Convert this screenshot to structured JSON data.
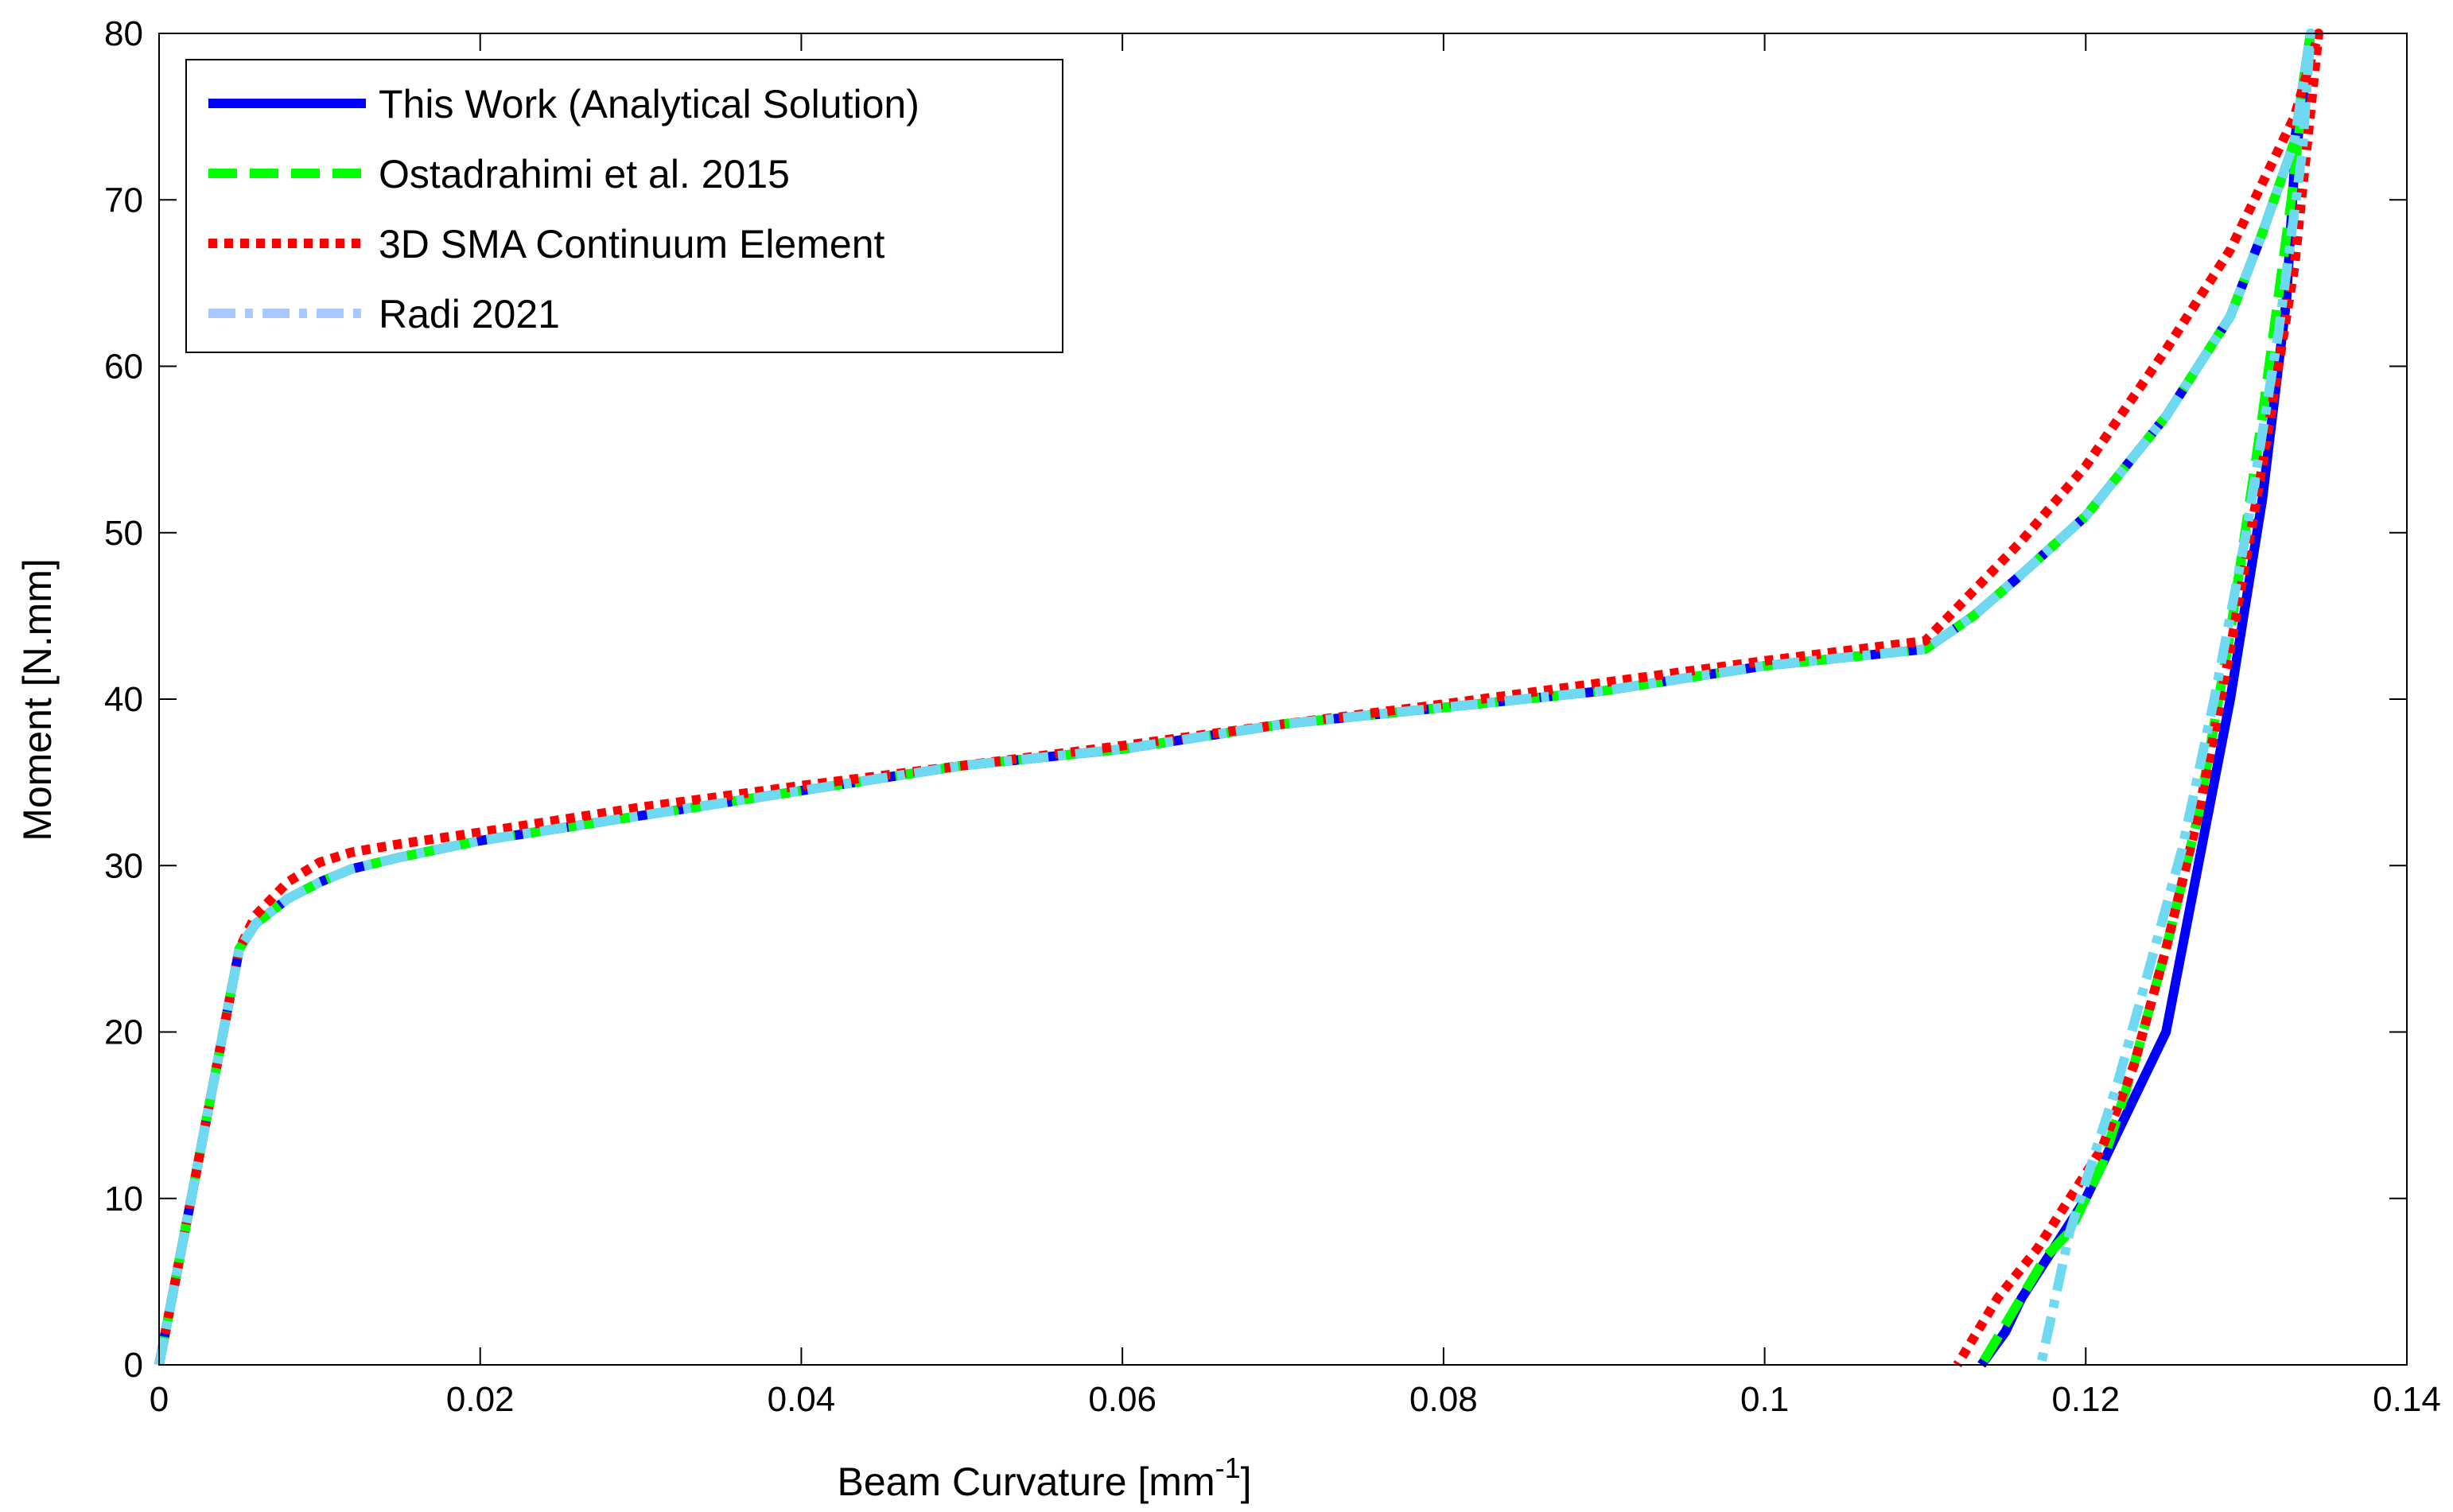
{
  "chart_data": {
    "type": "line",
    "xlabel_main": "Beam Curvature [mm",
    "xlabel_sup": "-1",
    "xlabel_end": "]",
    "ylabel": "Moment [N.mm]",
    "xlim": [
      0,
      0.14
    ],
    "ylim": [
      0,
      80
    ],
    "xticks": [
      0,
      0.02,
      0.04,
      0.06,
      0.08,
      0.1,
      0.12,
      0.14
    ],
    "xtick_labels": [
      "0",
      "0.02",
      "0.04",
      "0.06",
      "0.08",
      "0.1",
      "0.12",
      "0.14"
    ],
    "yticks": [
      0,
      10,
      20,
      30,
      40,
      50,
      60,
      70,
      80
    ],
    "ytick_labels": [
      "0",
      "10",
      "20",
      "30",
      "40",
      "50",
      "60",
      "70",
      "80"
    ],
    "grid": false,
    "legend_position": "top-left",
    "series": [
      {
        "name": "This Work (Analytical Solution)",
        "color": "#0000ff",
        "dash": "solid",
        "x": [
          0,
          0.002,
          0.004,
          0.005,
          0.006,
          0.008,
          0.01,
          0.012,
          0.015,
          0.02,
          0.03,
          0.04,
          0.05,
          0.06,
          0.07,
          0.08,
          0.09,
          0.1,
          0.11,
          0.113,
          0.116,
          0.12,
          0.125,
          0.129,
          0.131,
          0.133,
          0.134,
          0.133,
          0.1325,
          0.131,
          0.129,
          0.127,
          0.125,
          0.122,
          0.12,
          0.118,
          0.116,
          0.115,
          0.1135
        ],
        "y": [
          0,
          10,
          20,
          25,
          26.5,
          28,
          29,
          29.8,
          30.5,
          31.5,
          33,
          34.5,
          36,
          37,
          38.5,
          39.5,
          40.5,
          42,
          43,
          45,
          47.5,
          51,
          57,
          63,
          68,
          73.5,
          80,
          72,
          64,
          52,
          40,
          30,
          20,
          14,
          10,
          7,
          4,
          2,
          0
        ]
      },
      {
        "name": "Ostadrahimi et al. 2015",
        "color": "#00ff00",
        "dash": "dashed",
        "x": [
          0,
          0.002,
          0.004,
          0.005,
          0.006,
          0.008,
          0.01,
          0.012,
          0.015,
          0.02,
          0.03,
          0.04,
          0.05,
          0.06,
          0.07,
          0.08,
          0.09,
          0.1,
          0.11,
          0.113,
          0.116,
          0.12,
          0.125,
          0.129,
          0.131,
          0.133,
          0.134,
          0.1328,
          0.131,
          0.129,
          0.127,
          0.125,
          0.123,
          0.121,
          0.119,
          0.1175,
          0.1135
        ],
        "y": [
          0,
          10,
          20,
          25,
          26.5,
          28,
          29,
          29.8,
          30.5,
          31.5,
          33,
          34.5,
          36,
          37,
          38.5,
          39.5,
          40.5,
          42,
          43,
          45,
          47.5,
          51,
          57,
          63,
          68,
          73.5,
          80,
          70,
          57,
          44,
          33,
          25,
          18,
          12,
          8,
          6.5,
          0
        ]
      },
      {
        "name": "3D SMA Continuum Element",
        "color": "#ff0000",
        "dash": "dotted",
        "x": [
          0,
          0.002,
          0.004,
          0.005,
          0.006,
          0.008,
          0.01,
          0.012,
          0.015,
          0.02,
          0.03,
          0.04,
          0.05,
          0.06,
          0.07,
          0.08,
          0.09,
          0.1,
          0.11,
          0.113,
          0.116,
          0.12,
          0.125,
          0.129,
          0.131,
          0.133,
          0.1345,
          0.133,
          0.131,
          0.129,
          0.127,
          0.125,
          0.123,
          0.121,
          0.119,
          0.117,
          0.1145,
          0.112
        ],
        "y": [
          0,
          10,
          20,
          25,
          27,
          29,
          30.2,
          30.8,
          31.3,
          32,
          33.5,
          34.8,
          36,
          37.2,
          38.5,
          39.7,
          41,
          42.3,
          43.5,
          46.5,
          49.5,
          54,
          61,
          67,
          71,
          75,
          80,
          66,
          54,
          43,
          33,
          25,
          18,
          13,
          10,
          7,
          4,
          0
        ]
      },
      {
        "name": "Radi 2021",
        "color": "#6fd9f2",
        "legend_color": "#a9c8ff",
        "dash": "dashdot",
        "x": [
          0,
          0.002,
          0.004,
          0.005,
          0.006,
          0.008,
          0.01,
          0.012,
          0.015,
          0.02,
          0.03,
          0.04,
          0.05,
          0.06,
          0.07,
          0.08,
          0.09,
          0.1,
          0.11,
          0.113,
          0.116,
          0.12,
          0.125,
          0.129,
          0.131,
          0.133,
          0.134,
          0.1335,
          0.132,
          0.13,
          0.128,
          0.126,
          0.124,
          0.122,
          0.12,
          0.119,
          0.1172
        ],
        "y": [
          0,
          10,
          20,
          25,
          26.5,
          28,
          29,
          29.8,
          30.5,
          31.5,
          33,
          34.5,
          36,
          37,
          38.5,
          39.5,
          40.5,
          42,
          43,
          45,
          47.5,
          51,
          57,
          63,
          68,
          73.5,
          80,
          73,
          62,
          50,
          40,
          31,
          24,
          17,
          11,
          8,
          0
        ]
      }
    ]
  }
}
